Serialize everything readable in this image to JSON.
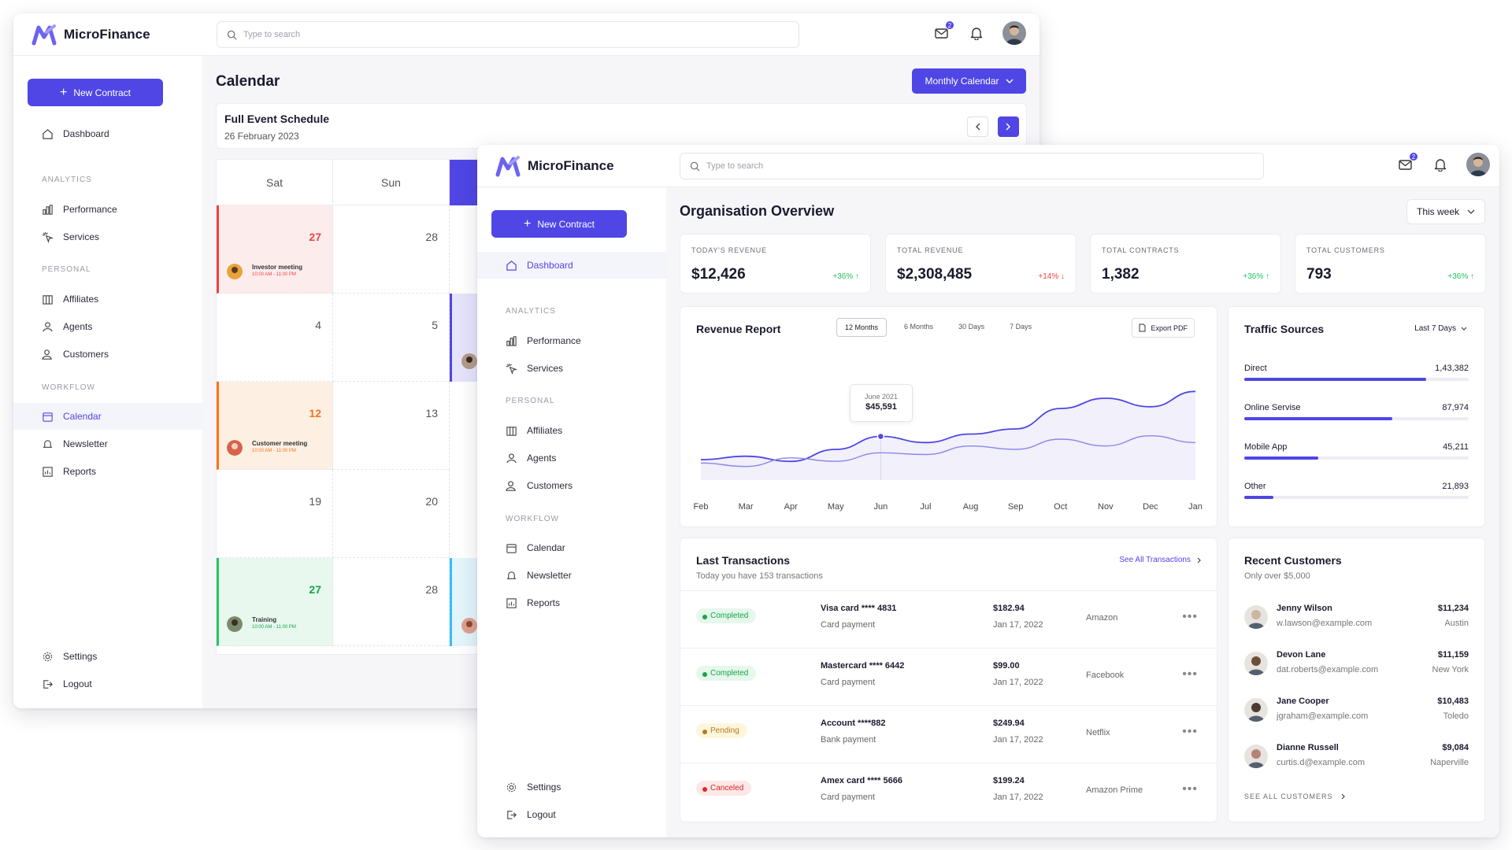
{
  "brand": "MicroFinance",
  "search_placeholder": "Type to search",
  "mail_badge": "2",
  "new_contract": "New Contract",
  "nav": {
    "dashboard": "Dashboard",
    "analytics": "ANALYTICS",
    "performance": "Performance",
    "services": "Services",
    "personal": "PERSONAL",
    "affiliates": "Affiliates",
    "agents": "Agents",
    "customers": "Customers",
    "workflow": "WORKFLOW",
    "calendar": "Calendar",
    "newsletter": "Newsletter",
    "reports": "Reports",
    "settings": "Settings",
    "logout": "Logout"
  },
  "calendar": {
    "title": "Calendar",
    "view_button": "Monthly Calendar",
    "schedule_title": "Full Event Schedule",
    "schedule_date": "26 February 2023",
    "days": [
      "Sat",
      "Sun"
    ],
    "cells": [
      {
        "sat": "27",
        "sun": "28"
      },
      {
        "sat": "4",
        "sun": "5"
      },
      {
        "sat": "12",
        "sun": "13"
      },
      {
        "sat": "19",
        "sun": "20"
      },
      {
        "sat": "27",
        "sun": "28"
      }
    ],
    "events": [
      {
        "title": "Investor meeting",
        "time": "10:00 AM - 11:00 PM",
        "color": "#ef4444",
        "bg": "#fdecec"
      },
      {
        "title": "Customer meeting",
        "time": "10:00 AM - 11:00 PM",
        "color": "#f97316",
        "bg": "#fdf0e3"
      },
      {
        "title": "Training",
        "time": "10:00 AM - 11:00 PM",
        "color": "#22c55e",
        "bg": "#e8f8ef"
      }
    ]
  },
  "overview": {
    "title": "Organisation Overview",
    "range": "This week",
    "kpis": [
      {
        "label": "TODAY'S REVENUE",
        "value": "$12,426",
        "change": "+36%",
        "dir": "up",
        "color": "#22c55e"
      },
      {
        "label": "TOTAL REVENUE",
        "value": "$2,308,485",
        "change": "+14%",
        "dir": "down",
        "color": "#ef4444"
      },
      {
        "label": "TOTAL CONTRACTS",
        "value": "1,382",
        "change": "+36%",
        "dir": "up",
        "color": "#22c55e"
      },
      {
        "label": "TOTAL CUSTOMERS",
        "value": "793",
        "change": "+36%",
        "dir": "up",
        "color": "#22c55e"
      }
    ]
  },
  "revenue": {
    "title": "Revenue Report",
    "tabs": [
      "12 Months",
      "6 Months",
      "30 Days",
      "7 Days"
    ],
    "export": "Export PDF",
    "tooltip_label": "June 2021",
    "tooltip_value": "$45,591"
  },
  "chart_data": {
    "type": "line",
    "x": [
      "Feb",
      "Mar",
      "Apr",
      "May",
      "Jun",
      "Jul",
      "Aug",
      "Sep",
      "Oct",
      "Nov",
      "Dec",
      "Jan"
    ],
    "series": [
      {
        "values": [
          32,
          34,
          31,
          38,
          45.6,
          42,
          47,
          50,
          62,
          68,
          63,
          72
        ],
        "color": "#4f46e5"
      },
      {
        "values": [
          30,
          28,
          33,
          31,
          36,
          35,
          40,
          38,
          44,
          40,
          46,
          42
        ],
        "color": "#8b86e8"
      }
    ],
    "xlabel": "",
    "ylabel": "",
    "grid": false
  },
  "traffic": {
    "title": "Traffic Sources",
    "range": "Last 7 Days",
    "items": [
      {
        "name": "Direct",
        "value": "1,43,382",
        "fraction": 0.81
      },
      {
        "name": "Online Servise",
        "value": "87,974",
        "fraction": 0.66
      },
      {
        "name": "Mobile App",
        "value": "45,211",
        "fraction": 0.33
      },
      {
        "name": "Other",
        "value": "21,893",
        "fraction": 0.13
      }
    ]
  },
  "transactions": {
    "title": "Last Transactions",
    "subtitle": "Today you have 153 transactions",
    "see_all": "See All Transactions",
    "rows": [
      {
        "status": "Completed",
        "status_color": "#16a34a",
        "status_bg": "#e6f7ec",
        "card": "Visa card  **** 4831",
        "type": "Card payment",
        "amount": "$182.94",
        "date": "Jan 17, 2022",
        "merchant": "Amazon"
      },
      {
        "status": "Completed",
        "status_color": "#16a34a",
        "status_bg": "#e6f7ec",
        "card": "Mastercard  **** 6442",
        "type": "Card payment",
        "amount": "$99.00",
        "date": "Jan 17, 2022",
        "merchant": "Facebook"
      },
      {
        "status": "Pending",
        "status_color": "#b7791f",
        "status_bg": "#fdf6dc",
        "card": "Account  ****882",
        "type": "Bank payment",
        "amount": "$249.94",
        "date": "Jan 17, 2022",
        "merchant": "Netflix"
      },
      {
        "status": "Canceled",
        "status_color": "#dc2626",
        "status_bg": "#fde8e8",
        "card": "Amex card  **** 5666",
        "type": "Card payment",
        "amount": "$199.24",
        "date": "Jan 17, 2022",
        "merchant": "Amazon Prime"
      }
    ]
  },
  "customers": {
    "title": "Recent Customers",
    "subtitle": "Only over $5,000",
    "see_all": "SEE ALL CUSTOMERS",
    "rows": [
      {
        "name": "Jenny Wilson",
        "email": "w.lawson@example.com",
        "amount": "$11,234",
        "city": "Austin",
        "avatar": "#c9b7a3"
      },
      {
        "name": "Devon Lane",
        "email": "dat.roberts@example.com",
        "amount": "$11,159",
        "city": "New York",
        "avatar": "#6b4f3a"
      },
      {
        "name": "Jane Cooper",
        "email": "jgraham@example.com",
        "amount": "$10,483",
        "city": "Toledo",
        "avatar": "#4a3c34"
      },
      {
        "name": "Dianne Russell",
        "email": "curtis.d@example.com",
        "amount": "$9,084",
        "city": "Naperville",
        "avatar": "#b5837a"
      }
    ]
  }
}
